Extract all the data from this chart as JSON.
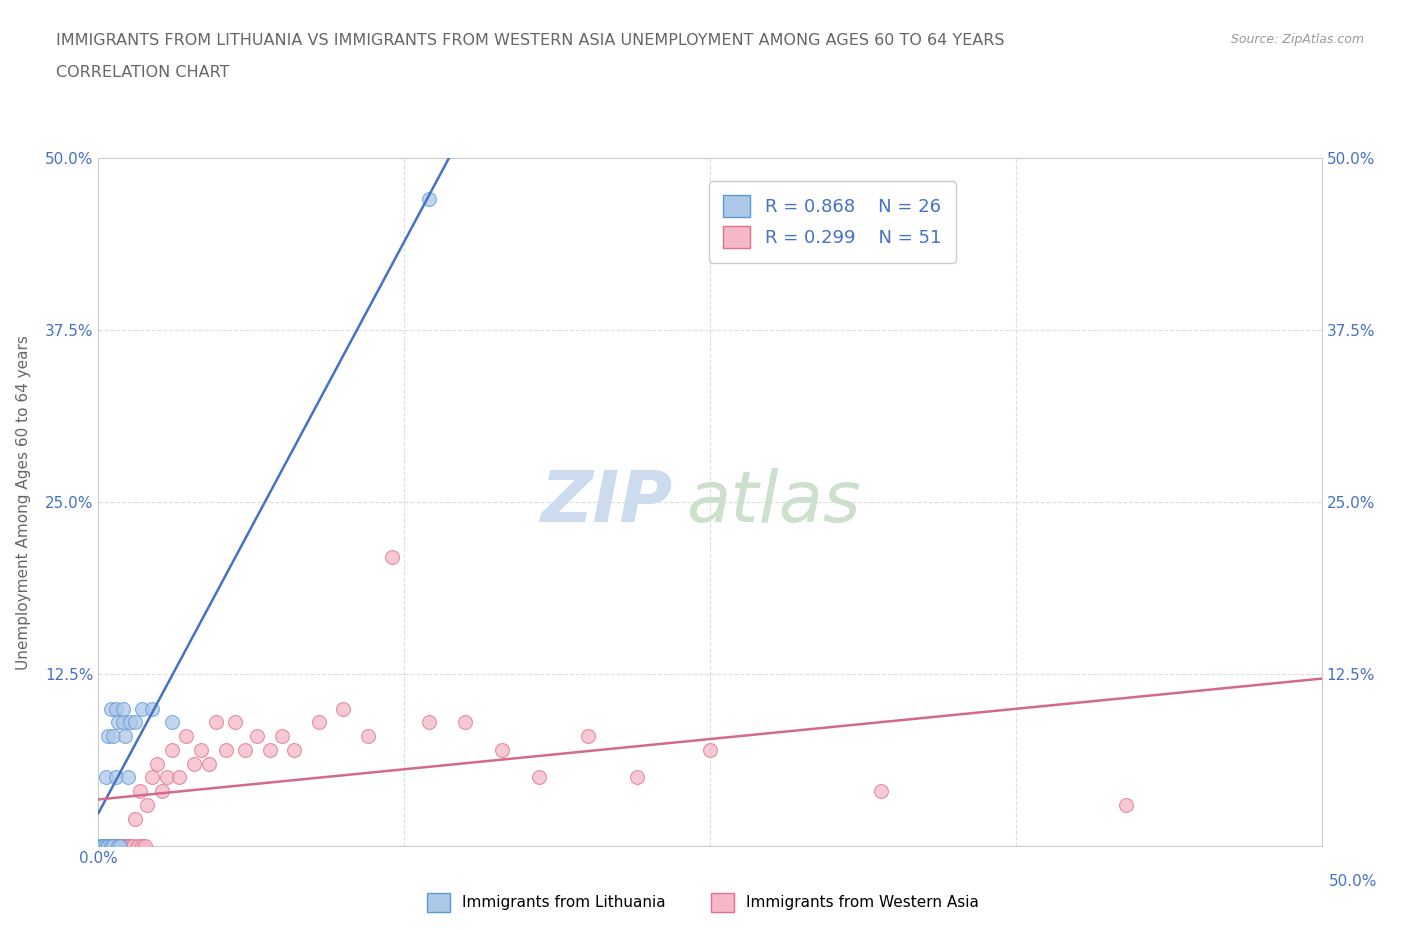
{
  "title_line1": "IMMIGRANTS FROM LITHUANIA VS IMMIGRANTS FROM WESTERN ASIA UNEMPLOYMENT AMONG AGES 60 TO 64 YEARS",
  "title_line2": "CORRELATION CHART",
  "source": "Source: ZipAtlas.com",
  "ylabel": "Unemployment Among Ages 60 to 64 years",
  "xlim": [
    0,
    0.5
  ],
  "ylim": [
    0,
    0.5
  ],
  "xtick_vals": [
    0.0,
    0.125,
    0.25,
    0.375,
    0.5
  ],
  "ytick_vals": [
    0.0,
    0.125,
    0.25,
    0.375,
    0.5
  ],
  "xticklabels": [
    "0.0%",
    "",
    "",
    "",
    "50.0%"
  ],
  "yticklabels": [
    "",
    "12.5%",
    "25.0%",
    "37.5%",
    "50.0%"
  ],
  "right_yticklabels": [
    "",
    "12.5%",
    "25.0%",
    "37.5%",
    "50.0%"
  ],
  "bottom_right_label": "50.0%",
  "legend_R1": "R = 0.868",
  "legend_N1": "N = 26",
  "legend_R2": "R = 0.299",
  "legend_N2": "N = 51",
  "legend_label1": "Immigrants from Lithuania",
  "legend_label2": "Immigrants from Western Asia",
  "color_blue": "#aec8e8",
  "color_blue_edge": "#5b9bd5",
  "color_blue_line": "#4472c4",
  "color_pink": "#f4b8c8",
  "color_pink_edge": "#e07090",
  "color_pink_line": "#d46a8a",
  "color_text": "#4472c4",
  "color_title": "#666666",
  "color_source": "#999999",
  "color_grid": "#dddddd",
  "lithuania_x": [
    0.001,
    0.002,
    0.002,
    0.003,
    0.003,
    0.004,
    0.004,
    0.005,
    0.005,
    0.006,
    0.006,
    0.007,
    0.007,
    0.008,
    0.008,
    0.009,
    0.01,
    0.01,
    0.011,
    0.012,
    0.013,
    0.015,
    0.018,
    0.022,
    0.03,
    0.135
  ],
  "lithuania_y": [
    0.0,
    0.0,
    0.0,
    0.0,
    0.05,
    0.0,
    0.08,
    0.0,
    0.1,
    0.0,
    0.08,
    0.05,
    0.1,
    0.0,
    0.09,
    0.0,
    0.09,
    0.1,
    0.08,
    0.05,
    0.09,
    0.09,
    0.1,
    0.1,
    0.09,
    0.47
  ],
  "western_asia_x": [
    0.001,
    0.002,
    0.003,
    0.004,
    0.005,
    0.006,
    0.007,
    0.008,
    0.009,
    0.01,
    0.011,
    0.012,
    0.013,
    0.014,
    0.015,
    0.016,
    0.017,
    0.018,
    0.019,
    0.02,
    0.022,
    0.024,
    0.026,
    0.028,
    0.03,
    0.033,
    0.036,
    0.039,
    0.042,
    0.045,
    0.048,
    0.052,
    0.056,
    0.06,
    0.065,
    0.07,
    0.075,
    0.08,
    0.09,
    0.1,
    0.11,
    0.12,
    0.135,
    0.15,
    0.165,
    0.18,
    0.2,
    0.22,
    0.25,
    0.32,
    0.42
  ],
  "western_asia_y": [
    0.0,
    0.0,
    0.0,
    0.0,
    0.0,
    0.0,
    0.0,
    0.0,
    0.0,
    0.0,
    0.0,
    0.0,
    0.0,
    0.0,
    0.02,
    0.0,
    0.04,
    0.0,
    0.0,
    0.03,
    0.05,
    0.06,
    0.04,
    0.05,
    0.07,
    0.05,
    0.08,
    0.06,
    0.07,
    0.06,
    0.09,
    0.07,
    0.09,
    0.07,
    0.08,
    0.07,
    0.08,
    0.07,
    0.09,
    0.1,
    0.08,
    0.21,
    0.09,
    0.09,
    0.07,
    0.05,
    0.08,
    0.05,
    0.07,
    0.04,
    0.03
  ],
  "background_color": "#ffffff",
  "watermark_zip_color": "#ccdcee",
  "watermark_atlas_color": "#cce0cc"
}
